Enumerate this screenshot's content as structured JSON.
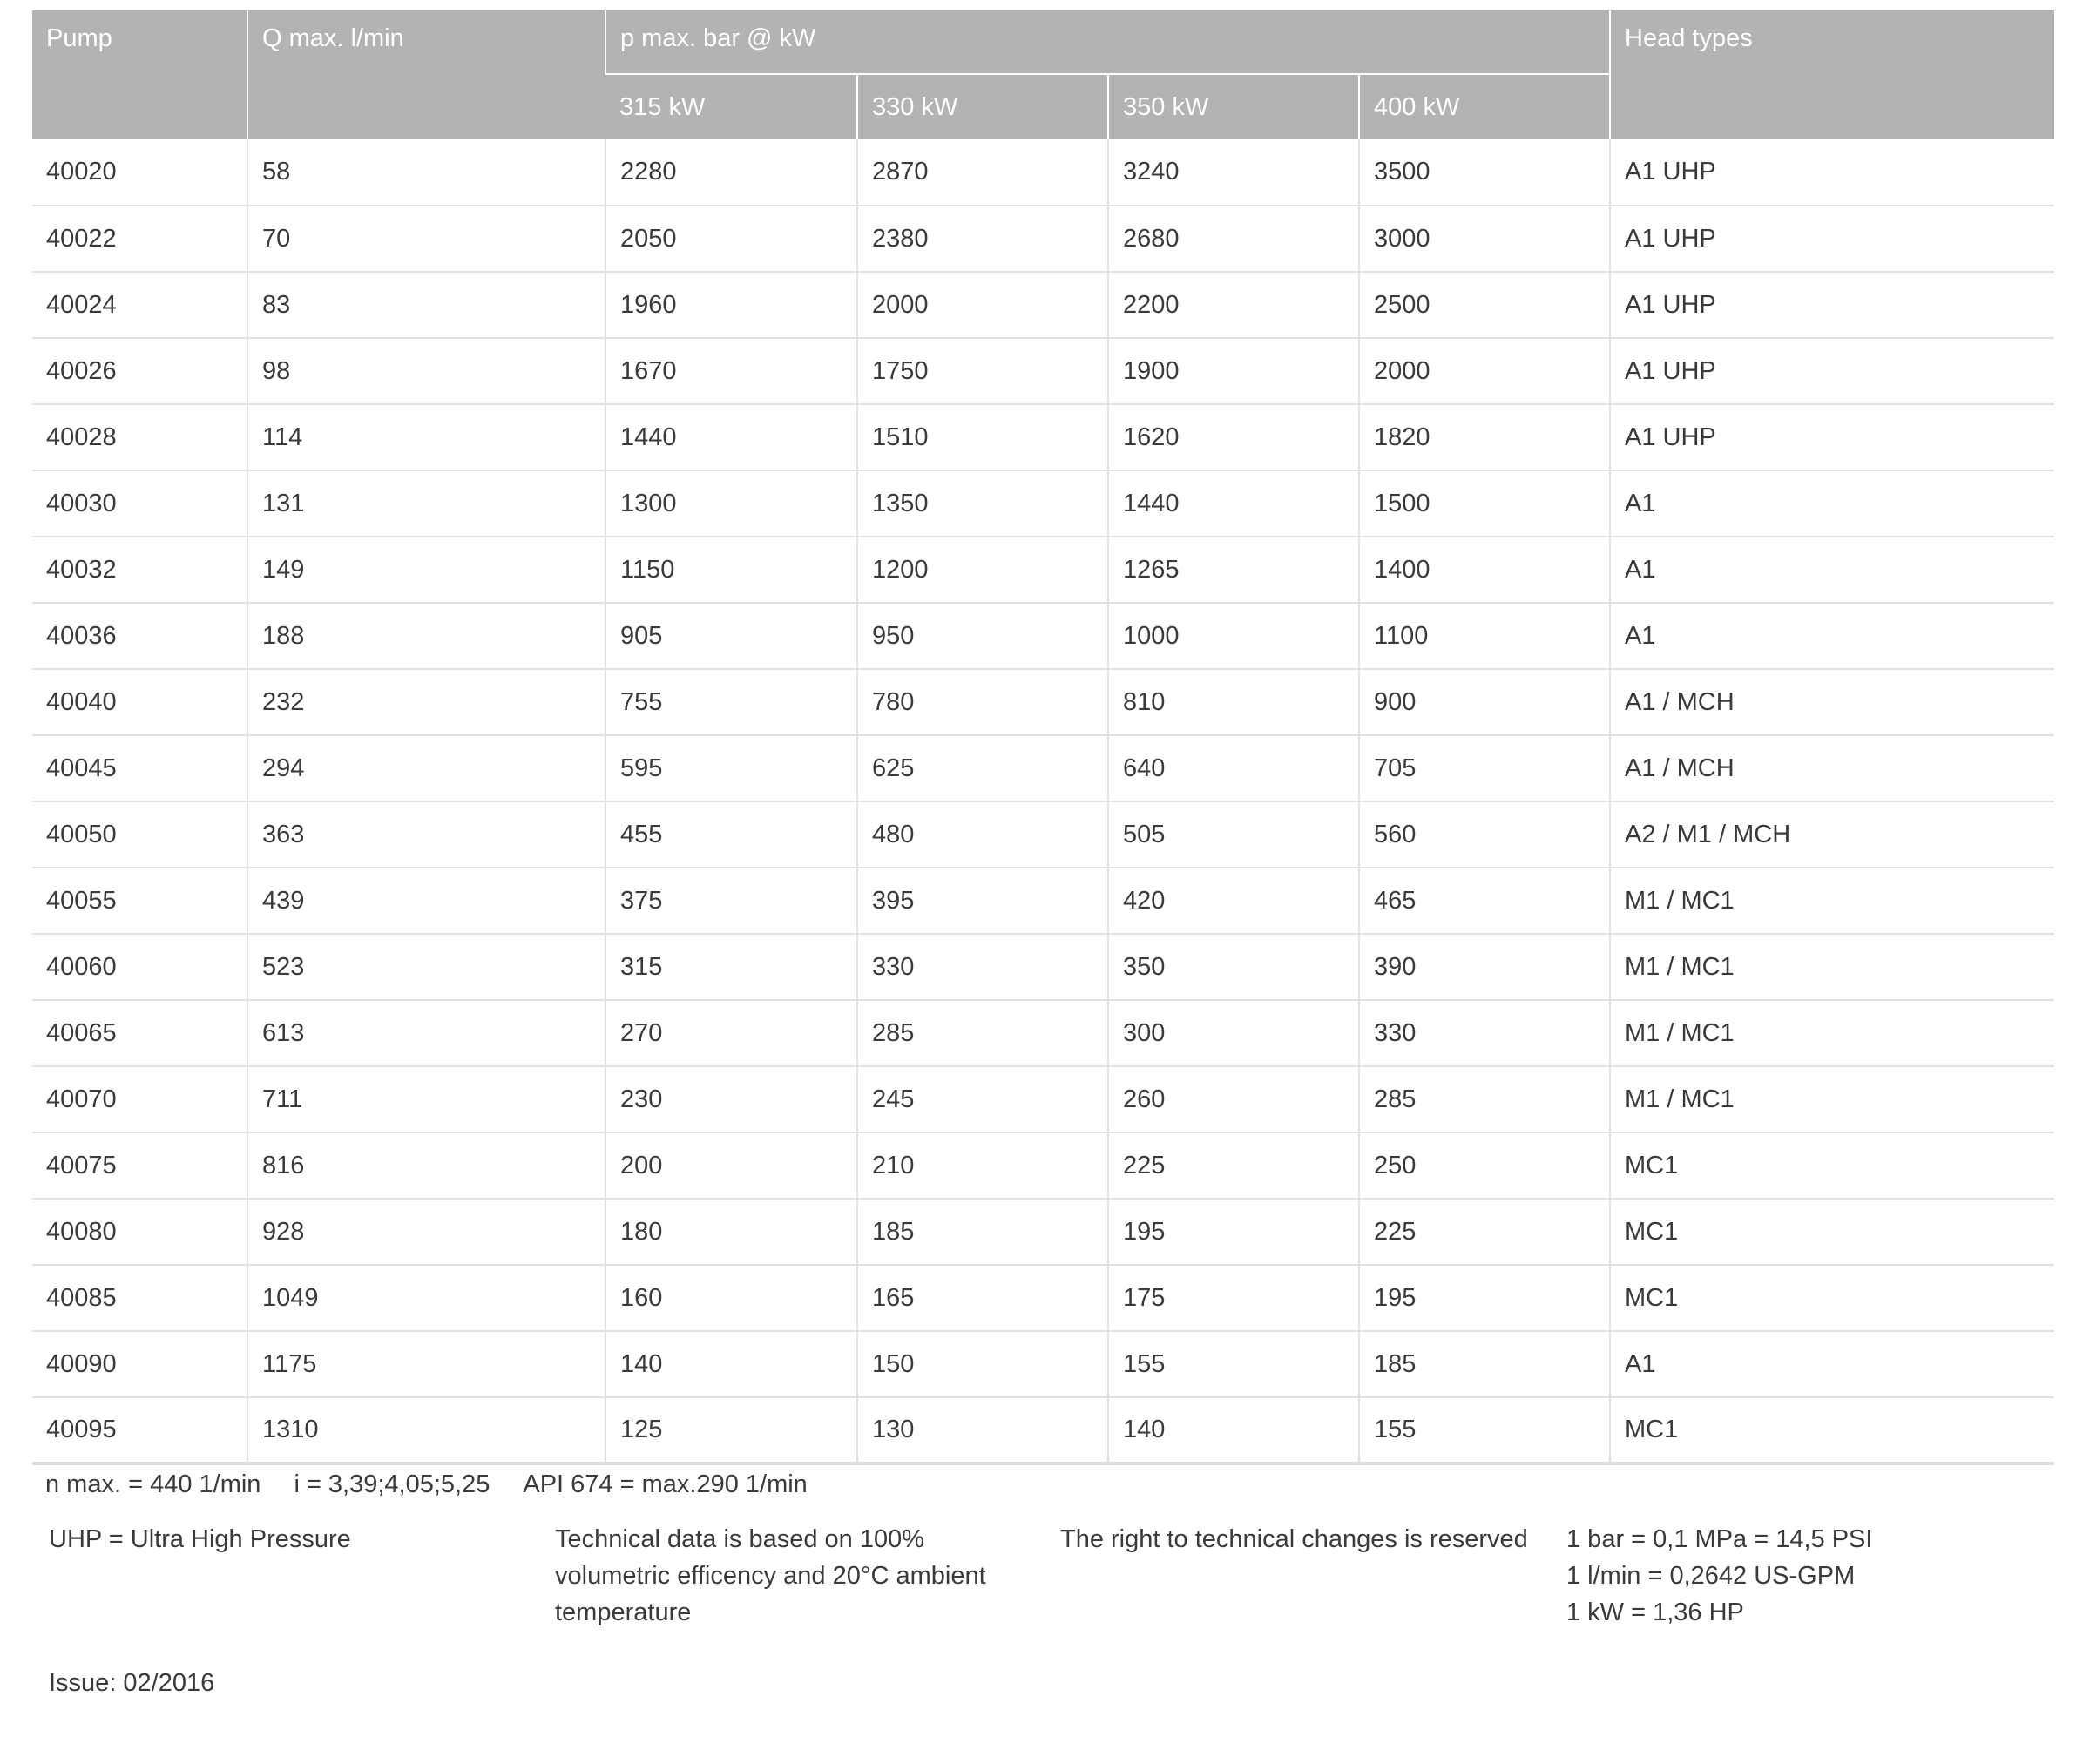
{
  "table": {
    "headers": {
      "pump": "Pump",
      "q_max": "Q max. l/min",
      "p_max": "p max. bar @ kW",
      "head_types": "Head types",
      "kw": [
        "315 kW",
        "330 kW",
        "350 kW",
        "400 kW"
      ]
    },
    "rows": [
      [
        "40020",
        "58",
        "2280",
        "2870",
        "3240",
        "3500",
        "A1 UHP"
      ],
      [
        "40022",
        "70",
        "2050",
        "2380",
        "2680",
        "3000",
        "A1 UHP"
      ],
      [
        "40024",
        "83",
        "1960",
        "2000",
        "2200",
        "2500",
        "A1 UHP"
      ],
      [
        "40026",
        "98",
        "1670",
        "1750",
        "1900",
        "2000",
        "A1 UHP"
      ],
      [
        "40028",
        "114",
        "1440",
        "1510",
        "1620",
        "1820",
        "A1 UHP"
      ],
      [
        "40030",
        "131",
        "1300",
        "1350",
        "1440",
        "1500",
        "A1"
      ],
      [
        "40032",
        "149",
        "1150",
        "1200",
        "1265",
        "1400",
        "A1"
      ],
      [
        "40036",
        "188",
        "905",
        "950",
        "1000",
        "1100",
        "A1"
      ],
      [
        "40040",
        "232",
        "755",
        "780",
        "810",
        "900",
        "A1 / MCH"
      ],
      [
        "40045",
        "294",
        "595",
        "625",
        "640",
        "705",
        "A1 / MCH"
      ],
      [
        "40050",
        "363",
        "455",
        "480",
        "505",
        "560",
        "A2 / M1 / MCH"
      ],
      [
        "40055",
        "439",
        "375",
        "395",
        "420",
        "465",
        "M1 / MC1"
      ],
      [
        "40060",
        "523",
        "315",
        "330",
        "350",
        "390",
        "M1 / MC1"
      ],
      [
        "40065",
        "613",
        "270",
        "285",
        "300",
        "330",
        "M1 / MC1"
      ],
      [
        "40070",
        "711",
        "230",
        "245",
        "260",
        "285",
        "M1 / MC1"
      ],
      [
        "40075",
        "816",
        "200",
        "210",
        "225",
        "250",
        "MC1"
      ],
      [
        "40080",
        "928",
        "180",
        "185",
        "195",
        "225",
        "MC1"
      ],
      [
        "40085",
        "1049",
        "160",
        "165",
        "175",
        "195",
        "MC1"
      ],
      [
        "40090",
        "1175",
        "140",
        "150",
        "155",
        "185",
        "A1"
      ],
      [
        "40095",
        "1310",
        "125",
        "130",
        "140",
        "155",
        "MC1"
      ]
    ]
  },
  "notes": {
    "n_max": "n max. = 440 1/min",
    "ratio": "i = 3,39;4,05;5,25",
    "api": "API 674 = max.290 1/min",
    "uhp": "UHP = Ultra High Pressure",
    "technical": [
      "Technical data is based on 100%",
      "volumetric efficency and 20°C ambient",
      "temperature"
    ],
    "rights": "The right to technical changes is reserved",
    "conversions": [
      "1 bar = 0,1 MPa = 14,5 PSI",
      "1 l/min = 0,2642 US-GPM",
      "1 kW = 1,36 HP"
    ],
    "issue": "Issue: 02/2016"
  },
  "colors": {
    "header_bg": "#b3b3b3",
    "header_text": "#ffffff",
    "grid": "#e2e2e2"
  }
}
